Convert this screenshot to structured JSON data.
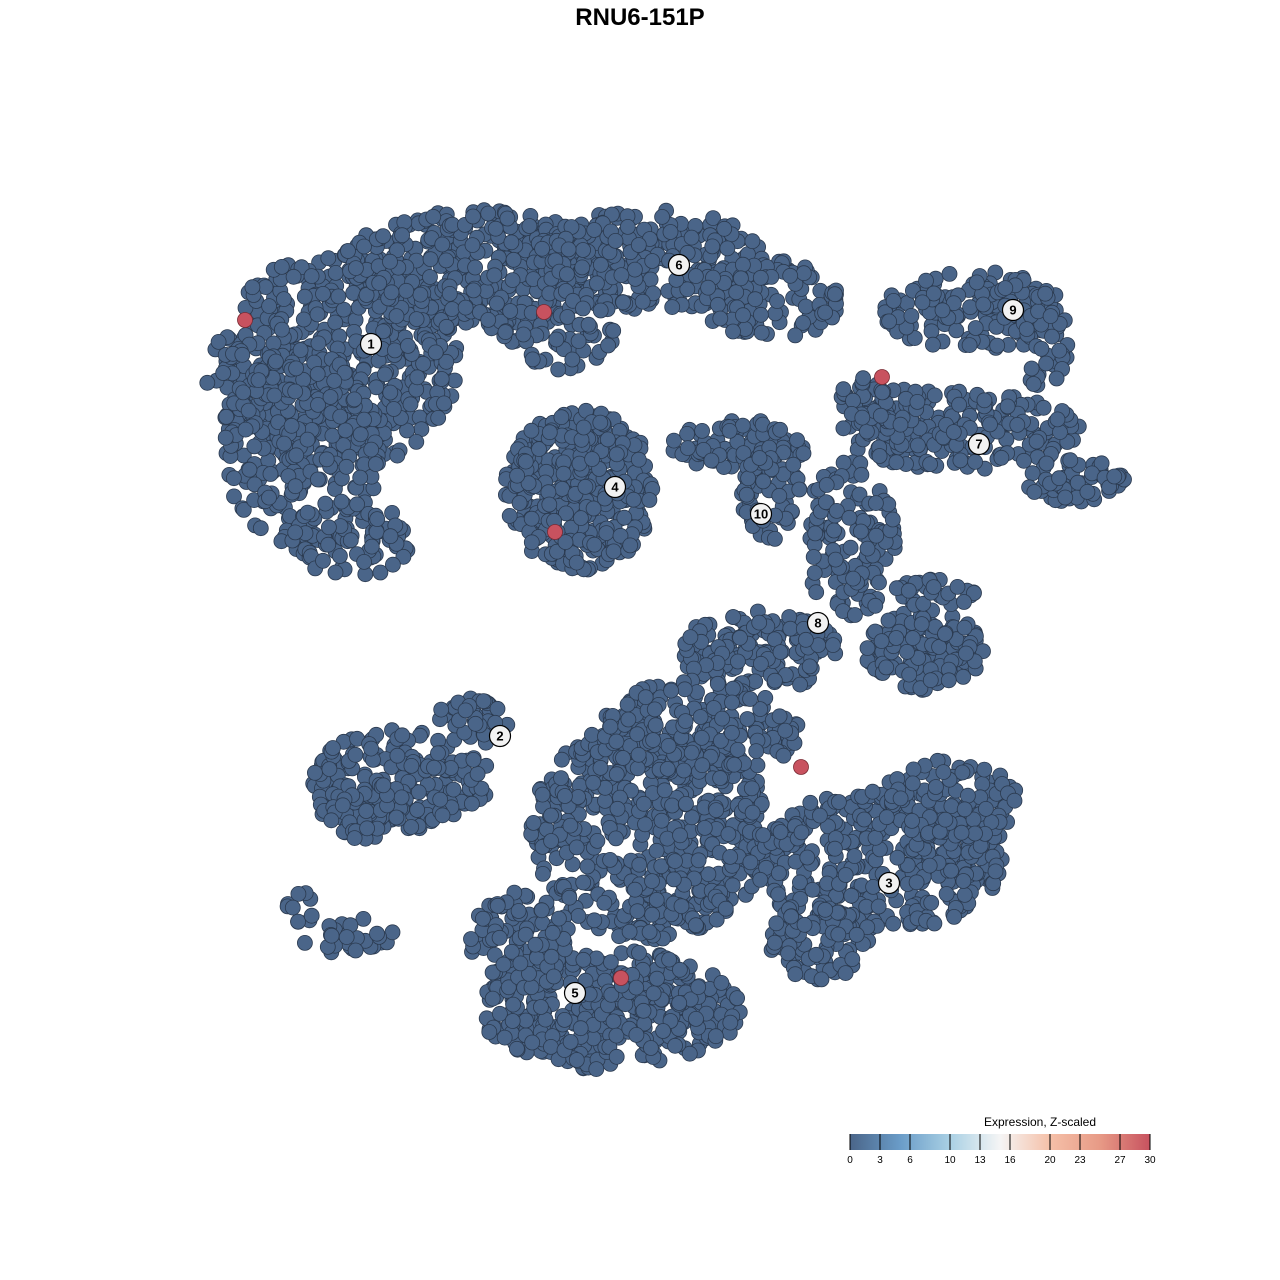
{
  "chart_data": {
    "type": "scatter",
    "title": "RNU6-151P",
    "xlabel": "",
    "ylabel": "",
    "grid": false,
    "axes_visible": false,
    "xlim": [
      -45,
      50
    ],
    "ylim": [
      -46,
      46
    ],
    "point_color_default": "#4a6589",
    "point_color_high": "#c8525f",
    "clusters": [
      {
        "label": "1",
        "x": -26.9,
        "y": 29.6
      },
      {
        "label": "2",
        "x": -14.0,
        "y": -9.6
      },
      {
        "label": "3",
        "x": 24.9,
        "y": -24.3
      },
      {
        "label": "4",
        "x": -2.5,
        "y": 15.3
      },
      {
        "label": "5",
        "x": -6.5,
        "y": -35.3
      },
      {
        "label": "6",
        "x": 3.9,
        "y": 37.5
      },
      {
        "label": "7",
        "x": 33.9,
        "y": 19.6
      },
      {
        "label": "8",
        "x": 17.8,
        "y": 1.7
      },
      {
        "label": "9",
        "x": 37.3,
        "y": 33.0
      },
      {
        "label": "10",
        "x": 12.1,
        "y": 12.6
      }
    ],
    "highlighted_points": [
      {
        "x": -39.5,
        "y": 32.0,
        "expression": 30
      },
      {
        "x": -9.6,
        "y": 32.8,
        "expression": 30
      },
      {
        "x": 24.2,
        "y": 26.3,
        "expression": 30
      },
      {
        "x": -8.5,
        "y": 10.8,
        "expression": 30
      },
      {
        "x": 16.1,
        "y": -12.7,
        "expression": 30
      },
      {
        "x": -1.9,
        "y": -33.8,
        "expression": 30
      }
    ],
    "other_points_expression": 0,
    "legend": {
      "title": "Expression, Z-scaled",
      "position": "bottom-right",
      "range": [
        0,
        30
      ],
      "ticks": [
        "0",
        "3",
        "6",
        "10",
        "13",
        "16",
        "20",
        "23",
        "27",
        "30"
      ],
      "colors": [
        "#4a6589",
        "#6a9cc8",
        "#a9d0e4",
        "#f5f5f5",
        "#f5c0a8",
        "#e79a86",
        "#c8525f"
      ]
    }
  }
}
